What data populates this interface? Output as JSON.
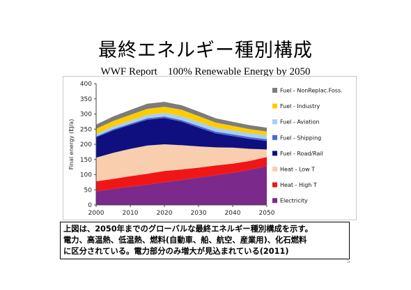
{
  "slide": {
    "title": "最終エネルギー種別構成",
    "subtitle": "WWF Report　100% Renewable Energy by 2050",
    "caption_lines": [
      "上図は、2050年までのグローバルな最終エネルギー種別構成を示す。",
      "電力、高温熱、低温熱、燃料(自動車、船、航空、産業用)、化石燃料",
      "に区分されている。電力部分のみ増大が見込まれている(2011)"
    ],
    "page_number": "5"
  },
  "chart_data": {
    "type": "area",
    "stacked": true,
    "title": "",
    "xlabel": "",
    "ylabel": "Final energy (EJ/a)",
    "x": [
      2000,
      2005,
      2010,
      2015,
      2020,
      2025,
      2030,
      2035,
      2040,
      2045,
      2050
    ],
    "xticks": [
      "2000",
      "2010",
      "2020",
      "2030",
      "2040",
      "2050"
    ],
    "yticks": [
      "0",
      "50",
      "100",
      "150",
      "200",
      "250",
      "300",
      "350",
      "400"
    ],
    "xlim": [
      2000,
      2050
    ],
    "ylim": [
      0,
      400
    ],
    "grid": false,
    "legend_position": "right",
    "series": [
      {
        "name": "Electricity",
        "color": "#7b2a8c",
        "values": [
          45,
          53,
          60,
          67,
          75,
          82,
          90,
          98,
          106,
          116,
          128
        ]
      },
      {
        "name": "Heat - High T",
        "color": "#f01616",
        "values": [
          33,
          33,
          35,
          36,
          37,
          35,
          33,
          32,
          30,
          29,
          30
        ]
      },
      {
        "name": "Heat - Low T",
        "color": "#f8ceae",
        "values": [
          78,
          86,
          90,
          93,
          88,
          80,
          70,
          60,
          53,
          40,
          25
        ]
      },
      {
        "name": "Fuel - Road/Rail",
        "color": "#0f0f80",
        "values": [
          67,
          74,
          79,
          85,
          87,
          78,
          62,
          46,
          38,
          33,
          28
        ]
      },
      {
        "name": "Fuel - Shipping",
        "color": "#4a67d6",
        "values": [
          3,
          4,
          4,
          5,
          5,
          5,
          6,
          6,
          6,
          6,
          6
        ]
      },
      {
        "name": "Fuel - Aviation",
        "color": "#a8cff0",
        "values": [
          8,
          9,
          10,
          11,
          12,
          13,
          13,
          13,
          13,
          13,
          13
        ]
      },
      {
        "name": "Fuel - Industry",
        "color": "#ffcc00",
        "values": [
          17,
          18,
          19,
          20,
          20,
          21,
          19,
          17,
          15,
          13,
          12
        ]
      },
      {
        "name": "Fuel - NonReplac.Foss.",
        "color": "#7c7c7c",
        "values": [
          14,
          15,
          16,
          17,
          16,
          15,
          15,
          14,
          13,
          13,
          13
        ]
      }
    ]
  }
}
